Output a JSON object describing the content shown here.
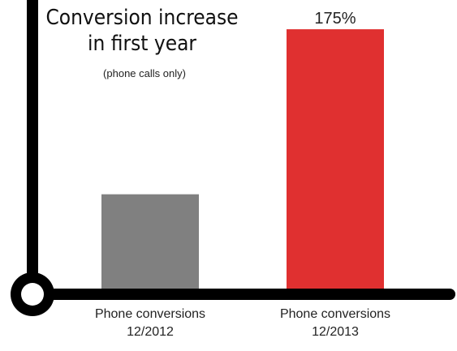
{
  "chart_data": {
    "type": "bar",
    "title_lines": [
      "Conversion increase",
      "in first year"
    ],
    "subtitle": "(phone calls only)",
    "categories": [
      [
        "Phone conversions",
        "12/2012"
      ],
      [
        "Phone conversions",
        "12/2013"
      ]
    ],
    "values": [
      100,
      275
    ],
    "data_labels": [
      "",
      "175%"
    ],
    "colors": [
      "#808080",
      "#e03030"
    ],
    "axis_color": "#000000",
    "ylim": [
      0,
      300
    ],
    "grid": false,
    "legend": "none"
  }
}
